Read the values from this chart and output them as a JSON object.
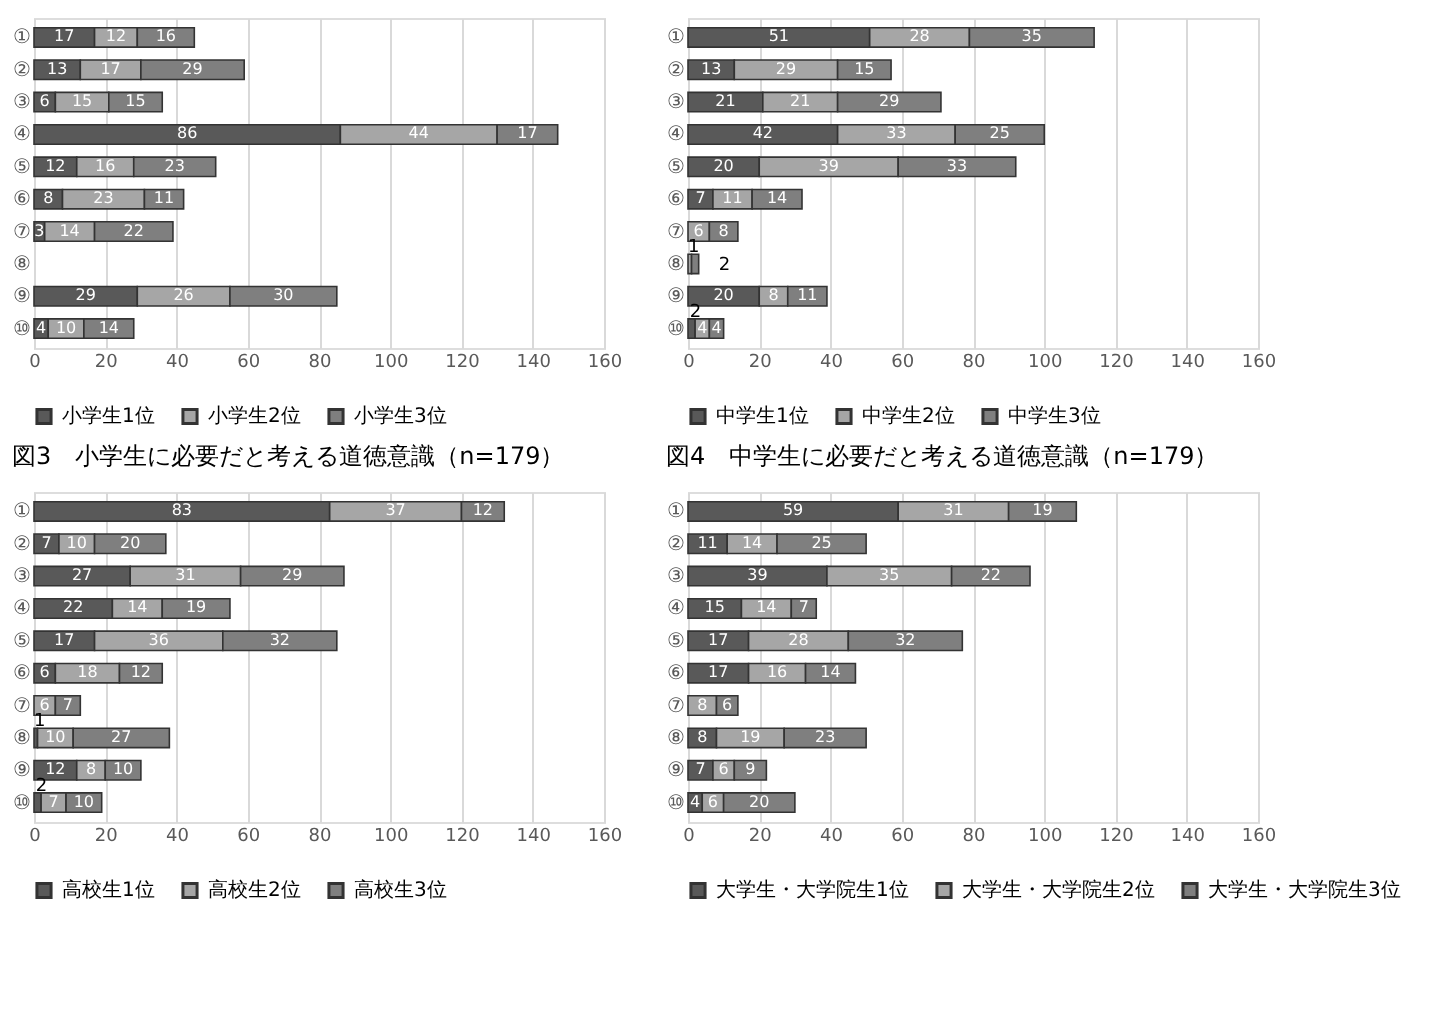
{
  "chart_data": [
    {
      "type": "bar",
      "orientation": "horizontal",
      "stacked": true,
      "title": "図3　小学生に必要だと考える道徳意識（n=179）",
      "categories": [
        "①",
        "②",
        "③",
        "④",
        "⑤",
        "⑥",
        "⑦",
        "⑧",
        "⑨",
        "⑩"
      ],
      "xlim": [
        0,
        160
      ],
      "xticks": [
        0,
        20,
        40,
        60,
        80,
        100,
        120,
        140,
        160
      ],
      "grid": "x",
      "legend": "bottom",
      "data_labels": true,
      "series": [
        {
          "name": "小学生1位",
          "color": "#595959",
          "values": [
            17,
            13,
            6,
            86,
            12,
            8,
            3,
            null,
            29,
            4
          ]
        },
        {
          "name": "小学生2位",
          "color": "#a6a6a6",
          "values": [
            12,
            17,
            15,
            44,
            16,
            23,
            14,
            null,
            26,
            10
          ]
        },
        {
          "name": "小学生3位",
          "color": "#7f7f7f",
          "values": [
            16,
            29,
            15,
            17,
            23,
            11,
            22,
            null,
            30,
            14
          ]
        }
      ]
    },
    {
      "type": "bar",
      "orientation": "horizontal",
      "stacked": true,
      "title": "図4　中学生に必要だと考える道徳意識（n=179）",
      "categories": [
        "①",
        "②",
        "③",
        "④",
        "⑤",
        "⑥",
        "⑦",
        "⑧",
        "⑨",
        "⑩"
      ],
      "xlim": [
        0,
        160
      ],
      "xticks": [
        0,
        20,
        40,
        60,
        80,
        100,
        120,
        140,
        160
      ],
      "grid": "x",
      "legend": "bottom",
      "data_labels": true,
      "series": [
        {
          "name": "中学生1位",
          "color": "#595959",
          "values": [
            51,
            13,
            21,
            42,
            20,
            7,
            null,
            null,
            20,
            2
          ]
        },
        {
          "name": "中学生2位",
          "color": "#a6a6a6",
          "values": [
            28,
            29,
            21,
            33,
            39,
            11,
            6,
            1,
            8,
            4
          ]
        },
        {
          "name": "中学生3位",
          "color": "#7f7f7f",
          "values": [
            35,
            15,
            29,
            25,
            33,
            14,
            8,
            2,
            11,
            4
          ]
        }
      ]
    },
    {
      "type": "bar",
      "orientation": "horizontal",
      "stacked": true,
      "categories": [
        "①",
        "②",
        "③",
        "④",
        "⑤",
        "⑥",
        "⑦",
        "⑧",
        "⑨",
        "⑩"
      ],
      "xlim": [
        0,
        160
      ],
      "xticks": [
        0,
        20,
        40,
        60,
        80,
        100,
        120,
        140,
        160
      ],
      "grid": "x",
      "legend": "bottom",
      "data_labels": true,
      "series": [
        {
          "name": "高校生1位",
          "color": "#595959",
          "values": [
            83,
            7,
            27,
            22,
            17,
            6,
            null,
            1,
            12,
            2
          ]
        },
        {
          "name": "高校生2位",
          "color": "#a6a6a6",
          "values": [
            37,
            10,
            31,
            14,
            36,
            18,
            6,
            10,
            8,
            7
          ]
        },
        {
          "name": "高校生3位",
          "color": "#7f7f7f",
          "values": [
            12,
            20,
            29,
            19,
            32,
            12,
            7,
            27,
            10,
            10
          ]
        }
      ]
    },
    {
      "type": "bar",
      "orientation": "horizontal",
      "stacked": true,
      "categories": [
        "①",
        "②",
        "③",
        "④",
        "⑤",
        "⑥",
        "⑦",
        "⑧",
        "⑨",
        "⑩"
      ],
      "xlim": [
        0,
        160
      ],
      "xticks": [
        0,
        20,
        40,
        60,
        80,
        100,
        120,
        140,
        160
      ],
      "grid": "x",
      "legend": "bottom",
      "data_labels": true,
      "series": [
        {
          "name": "大学生・大学院生1位",
          "color": "#595959",
          "values": [
            59,
            11,
            39,
            15,
            17,
            17,
            null,
            8,
            7,
            4
          ]
        },
        {
          "name": "大学生・大学院生2位",
          "color": "#a6a6a6",
          "values": [
            31,
            14,
            35,
            14,
            28,
            16,
            8,
            19,
            6,
            6
          ]
        },
        {
          "name": "大学生・大学院生3位",
          "color": "#7f7f7f",
          "values": [
            19,
            25,
            22,
            7,
            32,
            14,
            6,
            23,
            9,
            20
          ]
        }
      ]
    }
  ]
}
